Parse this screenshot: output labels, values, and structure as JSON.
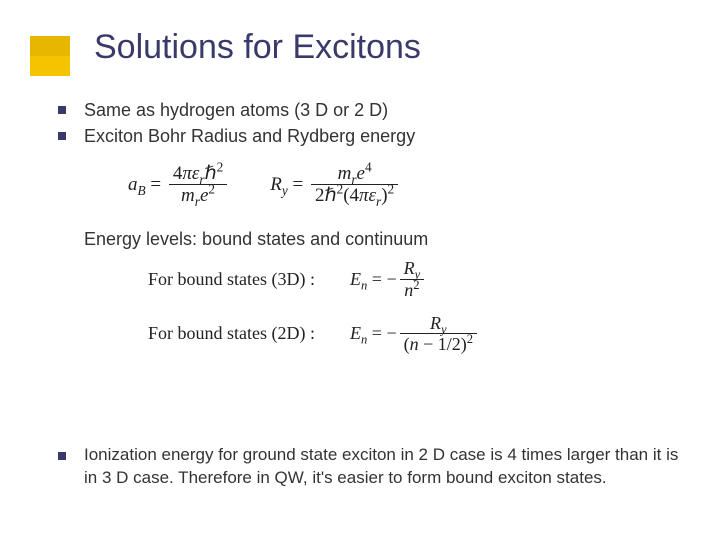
{
  "accent_color": "#f5c400",
  "title": "Solutions for Excitons",
  "bullets_top": [
    "Same as hydrogen atoms (3 D or 2 D)",
    "Exciton Bohr Radius and Rydberg energy"
  ],
  "formulas": {
    "a_B": {
      "lhs": "a_B",
      "num": "4πε_r ℏ²",
      "den": "m_r e²"
    },
    "R_y": {
      "lhs": "R_y",
      "num": "m_r e⁴",
      "den": "2ℏ² (4πε_r)²"
    }
  },
  "subhead": "Energy levels: bound states and continuum",
  "bound": {
    "three_d": {
      "label": "For bound states (3D) :",
      "lhs": "E_n",
      "num": "R_y",
      "den": "n²"
    },
    "two_d": {
      "label": "For bound states (2D) :",
      "lhs": "E_n",
      "num": "R_y",
      "den": "(n − 1/2)²"
    }
  },
  "bullet_bottom": "Ionization energy for ground state exciton in 2 D case is 4 times larger than it is in 3 D case.  Therefore in QW, it's easier to form bound exciton states."
}
